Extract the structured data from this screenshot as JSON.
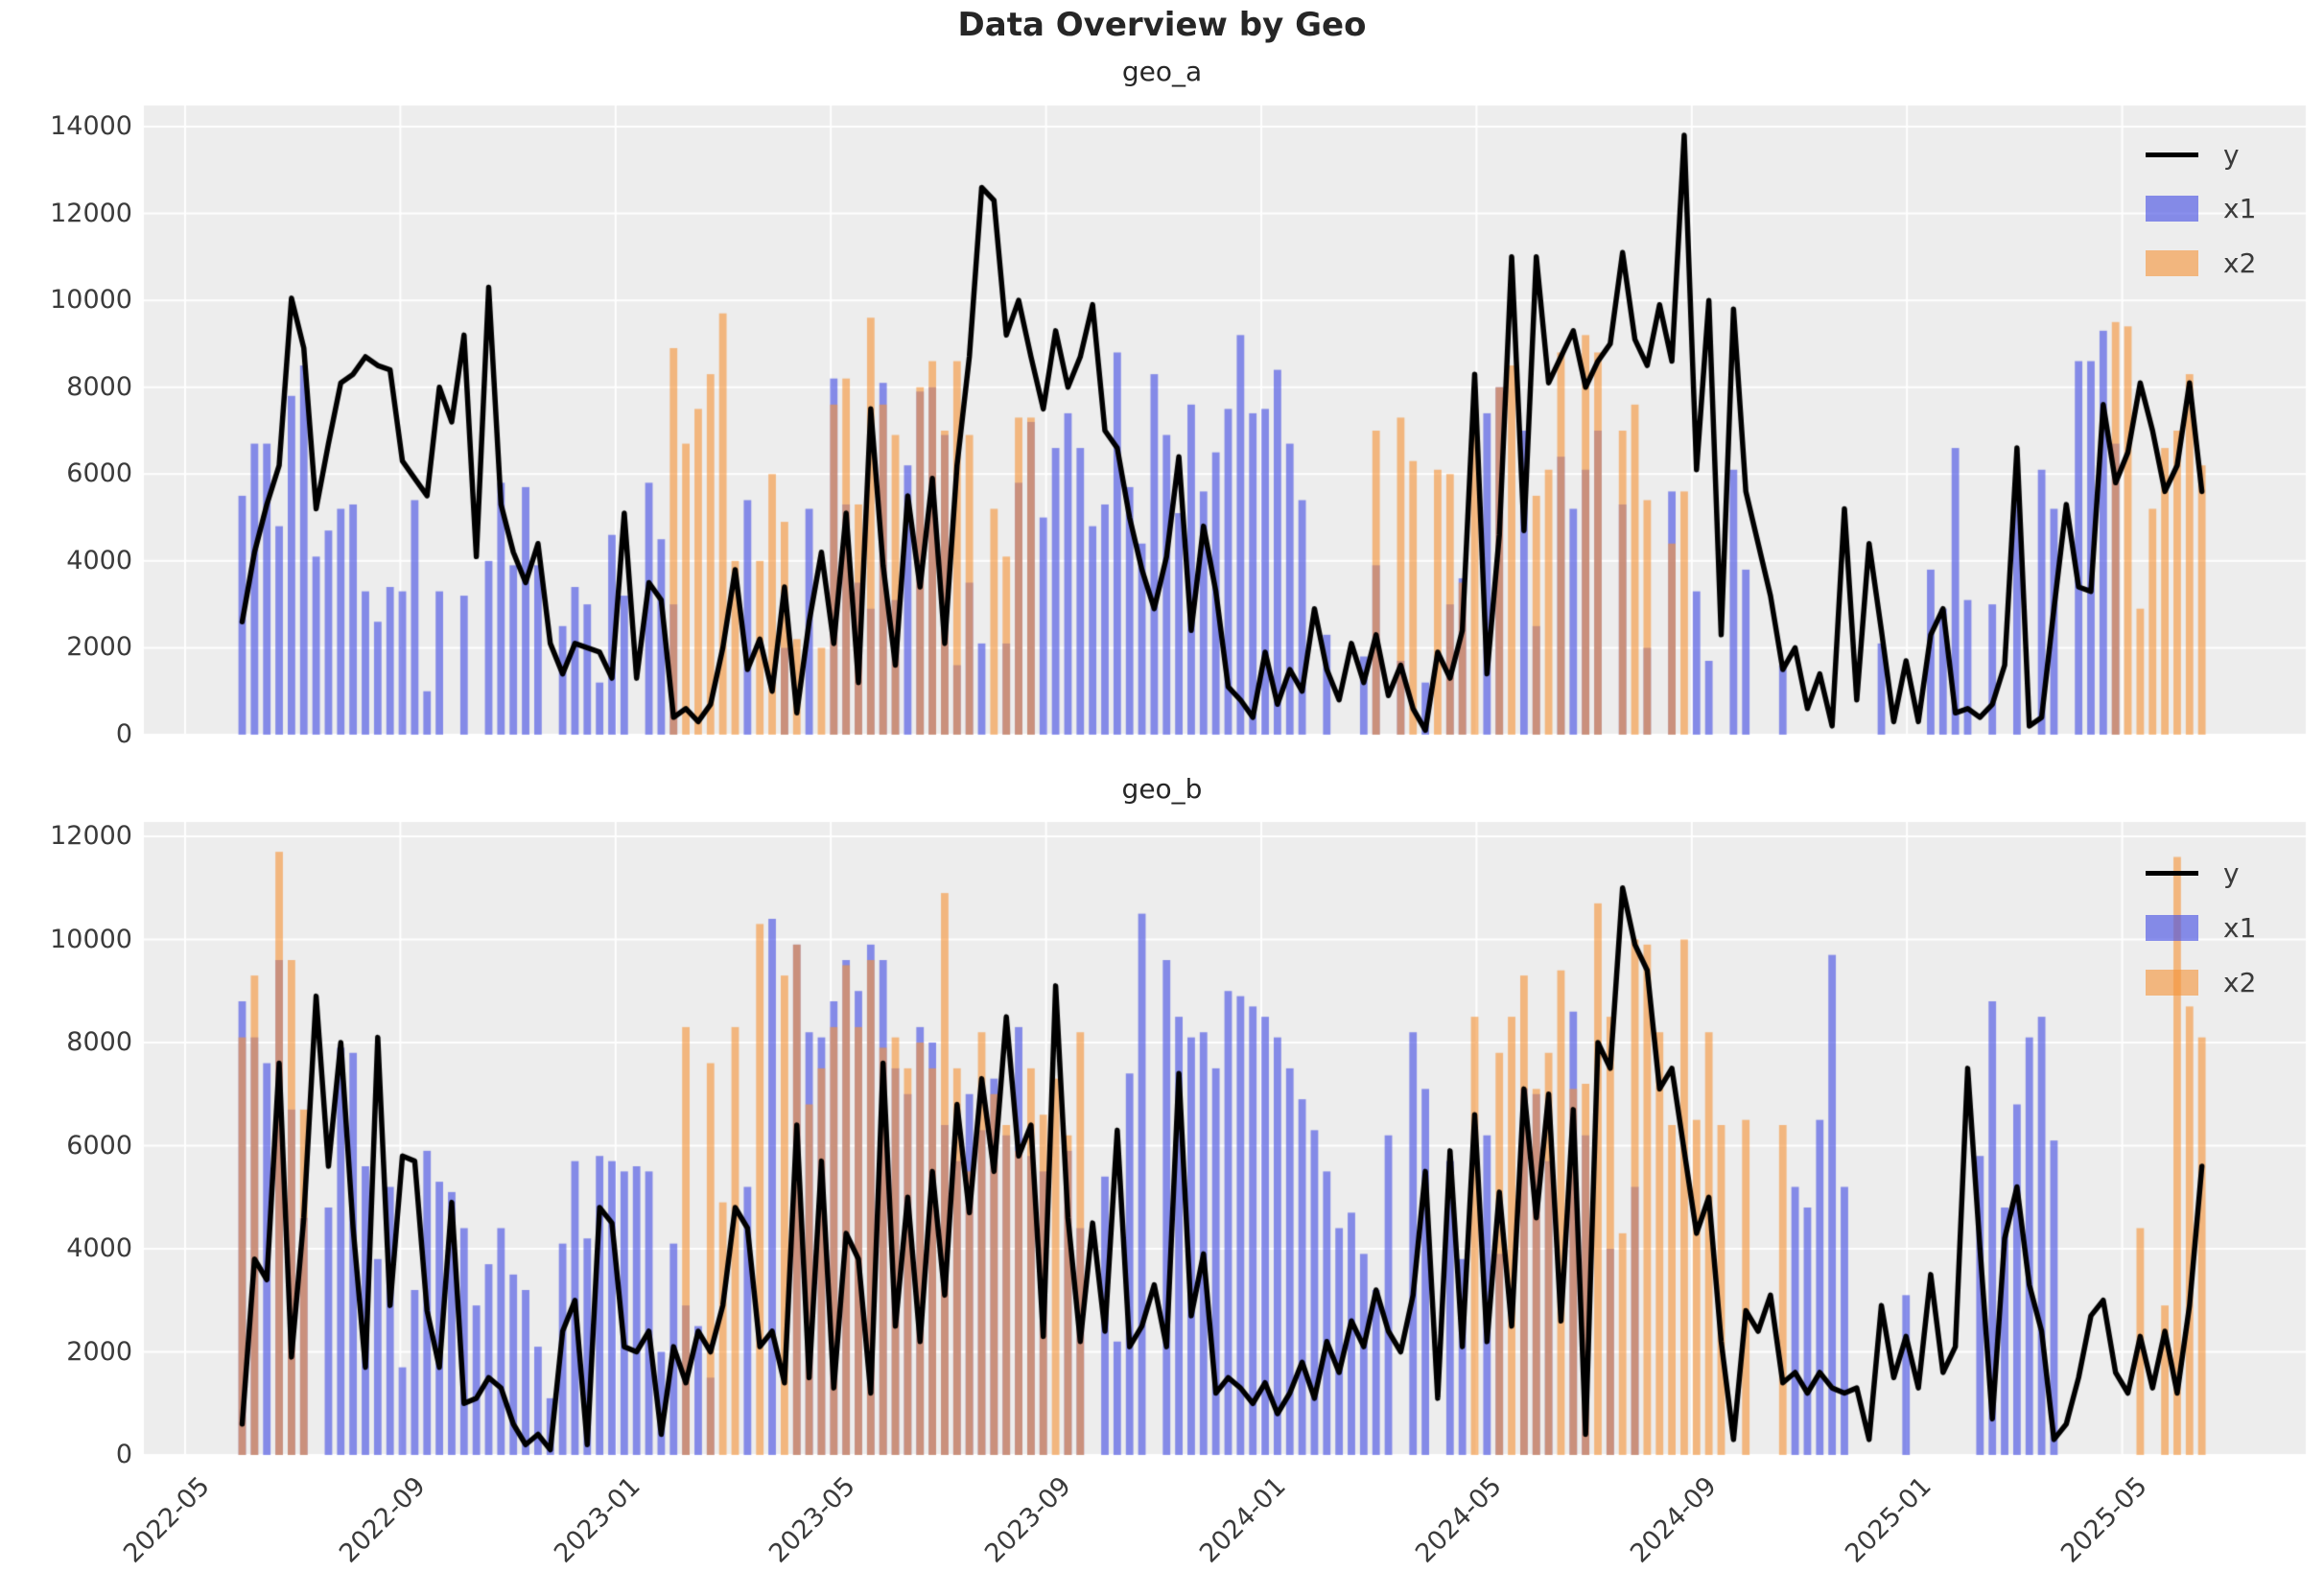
{
  "title": "Data Overview by Geo",
  "legend": {
    "y": "y",
    "x1": "x1",
    "x2": "x2"
  },
  "colors": {
    "line": "#000000",
    "x1_fill": "rgba(75,85,228,0.65)",
    "x2_fill": "rgba(245,148,58,0.62)",
    "plot_bg": "#ededed",
    "grid": "#ffffff",
    "tick_text": "#3b3b3b",
    "title_text": "#262626"
  },
  "x_axis": {
    "tick_labels": [
      "2022-05",
      "2022-09",
      "2023-01",
      "2023-05",
      "2023-09",
      "2024-01",
      "2024-05",
      "2024-09",
      "2025-01",
      "2025-05"
    ],
    "start_date": "2022-06-05",
    "freq_days": 7,
    "n_points": 160
  },
  "chart_data": [
    {
      "type": "line+bar",
      "title": "geo_a",
      "ylim": [
        0,
        14000
      ],
      "ytick_labels": [
        "0",
        "2000",
        "4000",
        "6000",
        "8000",
        "10000",
        "12000",
        "14000"
      ],
      "legend_entries": [
        "y",
        "x1",
        "x2"
      ],
      "series": [
        {
          "name": "x1",
          "kind": "bar",
          "values": [
            5500,
            6700,
            6700,
            4800,
            7800,
            8500,
            4100,
            4700,
            5200,
            5300,
            3300,
            2600,
            3400,
            3300,
            5400,
            1000,
            3300,
            0,
            3200,
            0,
            4000,
            5800,
            3900,
            5700,
            3900,
            0,
            2500,
            3400,
            3000,
            1200,
            4600,
            3200,
            0,
            5800,
            4500,
            3000,
            0,
            0,
            0,
            0,
            0,
            5400,
            0,
            0,
            2000,
            0,
            5200,
            0,
            8200,
            5300,
            3500,
            2900,
            8100,
            3100,
            6200,
            7900,
            8000,
            6900,
            1600,
            3500,
            2100,
            0,
            2100,
            5800,
            7200,
            5000,
            6600,
            7400,
            6600,
            4800,
            5300,
            8800,
            5700,
            4400,
            8300,
            6900,
            5100,
            7600,
            5600,
            6500,
            7500,
            9200,
            7400,
            7500,
            8400,
            6700,
            5400,
            0,
            2300,
            0,
            0,
            1800,
            3900,
            0,
            1700,
            0,
            1200,
            0,
            3000,
            3600,
            0,
            7400,
            8000,
            0,
            7000,
            2500,
            0,
            6400,
            5200,
            6100,
            7000,
            0,
            5300,
            0,
            2000,
            0,
            5600,
            0,
            3300,
            1700,
            0,
            6100,
            3800,
            0,
            0,
            1600,
            0,
            0,
            0,
            0,
            0,
            0,
            0,
            2100,
            0,
            0,
            0,
            3800,
            2900,
            6600,
            3100,
            0,
            3000,
            0,
            5500,
            0,
            6100,
            5200,
            0,
            8600,
            8600,
            9300,
            6700,
            0,
            0,
            0,
            0,
            0,
            0,
            0
          ]
        },
        {
          "name": "x2",
          "kind": "bar",
          "values": [
            0,
            0,
            0,
            0,
            0,
            0,
            0,
            0,
            0,
            0,
            0,
            0,
            0,
            0,
            0,
            0,
            0,
            0,
            0,
            0,
            0,
            0,
            0,
            0,
            0,
            0,
            0,
            0,
            0,
            0,
            0,
            0,
            0,
            0,
            0,
            8900,
            6700,
            7500,
            8300,
            9700,
            4000,
            0,
            4000,
            6000,
            4900,
            2200,
            0,
            2000,
            7600,
            8200,
            5300,
            9600,
            7600,
            6900,
            0,
            8000,
            8600,
            7000,
            8600,
            6900,
            0,
            5200,
            4100,
            7300,
            7300,
            0,
            0,
            0,
            0,
            0,
            0,
            0,
            0,
            0,
            0,
            0,
            0,
            0,
            0,
            0,
            0,
            0,
            0,
            0,
            0,
            0,
            0,
            0,
            0,
            0,
            0,
            0,
            7000,
            0,
            7300,
            6300,
            0,
            6100,
            6000,
            3500,
            7500,
            0,
            8000,
            8500,
            0,
            5500,
            6100,
            8800,
            0,
            9200,
            8800,
            0,
            7000,
            7600,
            5400,
            0,
            4400,
            5600,
            0,
            0,
            0,
            0,
            0,
            0,
            0,
            0,
            0,
            0,
            0,
            0,
            0,
            0,
            0,
            0,
            0,
            0,
            0,
            0,
            0,
            0,
            0,
            0,
            0,
            0,
            0,
            0,
            0,
            0,
            0,
            0,
            0,
            0,
            9500,
            9400,
            2900,
            5200,
            6600,
            7000,
            8300,
            6200
          ]
        },
        {
          "name": "y",
          "kind": "line",
          "values": [
            2600,
            4200,
            5300,
            6200,
            10050,
            8900,
            5200,
            6700,
            8100,
            8300,
            8700,
            8500,
            8400,
            6300,
            5900,
            5500,
            8000,
            7200,
            9200,
            4100,
            10300,
            5300,
            4200,
            3500,
            4400,
            2100,
            1400,
            2100,
            2000,
            1900,
            1300,
            5100,
            1300,
            3500,
            3100,
            400,
            600,
            300,
            700,
            2000,
            3800,
            1500,
            2200,
            1000,
            3400,
            500,
            2600,
            4200,
            2100,
            5100,
            1200,
            7500,
            3900,
            1600,
            5500,
            3400,
            5900,
            2100,
            6200,
            8700,
            12600,
            12300,
            9200,
            10000,
            8700,
            7500,
            9300,
            8000,
            8700,
            9900,
            7000,
            6600,
            5000,
            3800,
            2900,
            4100,
            6400,
            2400,
            4800,
            3300,
            1100,
            800,
            400,
            1900,
            700,
            1500,
            1000,
            2900,
            1500,
            800,
            2100,
            1200,
            2300,
            900,
            1600,
            600,
            100,
            1900,
            1300,
            2400,
            8300,
            1400,
            4600,
            11000,
            4700,
            11000,
            8100,
            8700,
            9300,
            8000,
            8600,
            9000,
            11100,
            9100,
            8500,
            9900,
            8600,
            13800,
            6100,
            10000,
            2300,
            9800,
            5600,
            4400,
            3200,
            1500,
            2000,
            600,
            1400,
            200,
            5200,
            800,
            4400,
            2400,
            300,
            1700,
            300,
            2300,
            2900,
            500,
            600,
            400,
            700,
            1600,
            6600,
            200,
            400,
            2900,
            5300,
            3400,
            3300,
            7600,
            5800,
            6500,
            8100,
            7000,
            5600,
            6200,
            8100,
            5600
          ]
        }
      ]
    },
    {
      "type": "line+bar",
      "title": "geo_b",
      "ylim": [
        0,
        12000
      ],
      "ytick_labels": [
        "0",
        "2000",
        "4000",
        "6000",
        "8000",
        "10000",
        "12000"
      ],
      "legend_entries": [
        "y",
        "x1",
        "x2"
      ],
      "series": [
        {
          "name": "x1",
          "kind": "bar",
          "values": [
            8800,
            8100,
            7600,
            9600,
            6700,
            4600,
            0,
            4800,
            7900,
            7800,
            5600,
            3800,
            5200,
            1700,
            3200,
            5900,
            5300,
            5100,
            4400,
            2900,
            3700,
            4400,
            3500,
            3200,
            2100,
            1100,
            4100,
            5700,
            4200,
            5800,
            5700,
            5500,
            5600,
            5500,
            2000,
            4100,
            2900,
            2500,
            1500,
            0,
            0,
            5200,
            0,
            10400,
            0,
            9900,
            8200,
            8100,
            8800,
            9600,
            9000,
            9900,
            9600,
            7500,
            7000,
            8300,
            8000,
            6400,
            5700,
            7000,
            6300,
            7300,
            6200,
            8300,
            5800,
            5500,
            0,
            5900,
            4400,
            0,
            5400,
            2200,
            7400,
            10500,
            0,
            9600,
            8500,
            8100,
            8200,
            7500,
            9000,
            8900,
            8700,
            8500,
            8100,
            7500,
            6900,
            6300,
            5500,
            4400,
            4700,
            3900,
            3200,
            6200,
            0,
            8200,
            7100,
            0,
            5700,
            3800,
            0,
            6200,
            3900,
            0,
            7100,
            7000,
            5700,
            0,
            8600,
            6200,
            0,
            4000,
            0,
            5200,
            0,
            0,
            0,
            0,
            0,
            0,
            0,
            0,
            0,
            0,
            0,
            0,
            5200,
            4800,
            6500,
            9700,
            5200,
            0,
            0,
            0,
            0,
            3100,
            0,
            0,
            0,
            0,
            0,
            5800,
            8800,
            4800,
            6800,
            8100,
            8500,
            6100,
            0,
            0,
            0,
            0,
            0,
            0,
            0,
            0,
            0,
            0,
            0,
            0
          ]
        },
        {
          "name": "x2",
          "kind": "bar",
          "values": [
            8100,
            9300,
            0,
            11700,
            9600,
            6700,
            0,
            0,
            0,
            0,
            0,
            0,
            0,
            0,
            0,
            0,
            0,
            0,
            0,
            0,
            0,
            0,
            0,
            0,
            0,
            0,
            0,
            0,
            0,
            0,
            0,
            0,
            0,
            0,
            0,
            0,
            8300,
            0,
            7600,
            4900,
            8300,
            0,
            10300,
            0,
            9300,
            9900,
            6800,
            7500,
            8300,
            9500,
            8300,
            9600,
            7900,
            8100,
            7500,
            8000,
            7500,
            10900,
            7500,
            5500,
            8200,
            7000,
            6400,
            5900,
            7500,
            6600,
            7300,
            6200,
            8200,
            0,
            0,
            0,
            0,
            0,
            0,
            0,
            0,
            0,
            0,
            0,
            0,
            0,
            0,
            0,
            0,
            0,
            0,
            0,
            0,
            0,
            0,
            0,
            0,
            0,
            0,
            0,
            0,
            0,
            0,
            0,
            8500,
            0,
            7800,
            8500,
            9300,
            7100,
            7800,
            9400,
            7100,
            7200,
            10700,
            8500,
            4300,
            10000,
            9900,
            8200,
            6400,
            10000,
            6500,
            8200,
            6400,
            0,
            6500,
            0,
            0,
            6400,
            0,
            0,
            0,
            0,
            0,
            0,
            0,
            0,
            0,
            0,
            0,
            0,
            0,
            0,
            0,
            0,
            0,
            0,
            0,
            0,
            0,
            0,
            0,
            0,
            0,
            0,
            0,
            0,
            4400,
            0,
            2900,
            11600,
            8700,
            8100
          ]
        },
        {
          "name": "y",
          "kind": "line",
          "values": [
            600,
            3800,
            3400,
            7600,
            1900,
            4600,
            8900,
            5600,
            8000,
            4400,
            1700,
            8100,
            2900,
            5800,
            5700,
            2800,
            1700,
            4900,
            1000,
            1100,
            1500,
            1300,
            600,
            200,
            400,
            100,
            2400,
            3000,
            200,
            4800,
            4500,
            2100,
            2000,
            2400,
            400,
            2100,
            1400,
            2400,
            2000,
            2900,
            4800,
            4400,
            2100,
            2400,
            1400,
            6400,
            1500,
            5700,
            1300,
            4300,
            3800,
            1200,
            7600,
            2500,
            5000,
            2200,
            5500,
            3100,
            6800,
            4700,
            7300,
            5500,
            8500,
            5800,
            6400,
            2300,
            9100,
            4600,
            2200,
            4500,
            2400,
            6300,
            2100,
            2500,
            3300,
            2100,
            7400,
            2700,
            3900,
            1200,
            1500,
            1300,
            1000,
            1400,
            800,
            1200,
            1800,
            1100,
            2200,
            1600,
            2600,
            2100,
            3200,
            2400,
            2000,
            3100,
            5500,
            1100,
            5900,
            2100,
            6600,
            2200,
            5100,
            2500,
            7100,
            4600,
            7000,
            2600,
            6700,
            400,
            8000,
            7500,
            11000,
            9900,
            9400,
            7100,
            7500,
            5900,
            4300,
            5000,
            2200,
            300,
            2800,
            2400,
            3100,
            1400,
            1600,
            1200,
            1600,
            1300,
            1200,
            1300,
            300,
            2900,
            1500,
            2300,
            1300,
            3500,
            1600,
            2100,
            7500,
            4000,
            700,
            4200,
            5200,
            3300,
            2400,
            300,
            600,
            1500,
            2700,
            3000,
            1600,
            1200,
            2300,
            1300,
            2400,
            1200,
            2900,
            5600
          ]
        }
      ]
    }
  ]
}
